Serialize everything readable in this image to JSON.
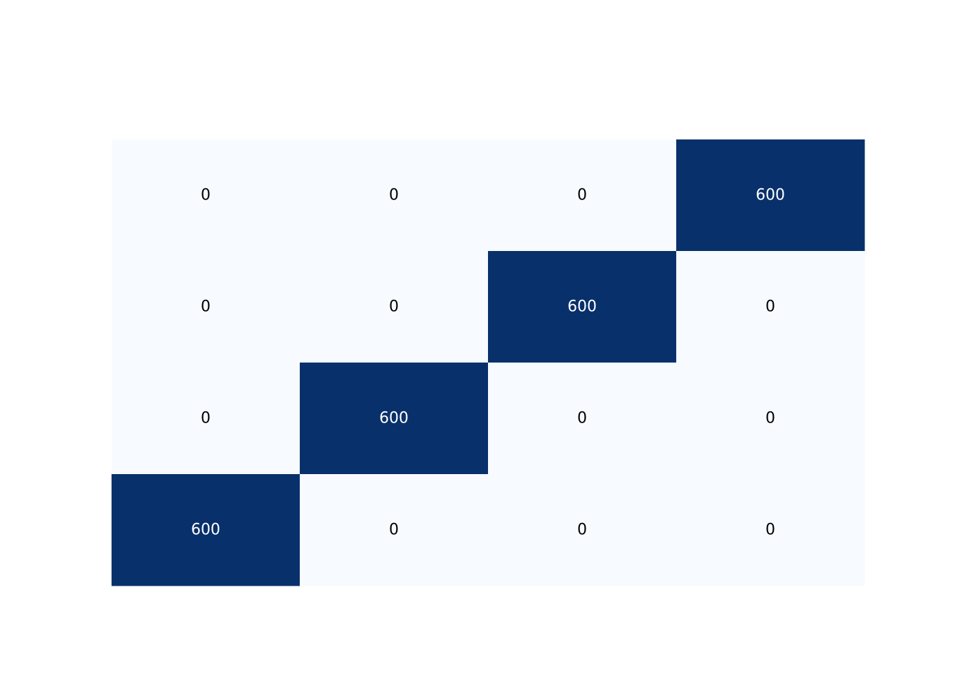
{
  "chart_data": {
    "type": "heatmap",
    "rows": 4,
    "cols": 4,
    "values": [
      [
        0,
        0,
        0,
        600
      ],
      [
        0,
        0,
        600,
        0
      ],
      [
        0,
        600,
        0,
        0
      ],
      [
        600,
        0,
        0,
        0
      ]
    ],
    "value_range": [
      0,
      600
    ],
    "colormap": {
      "low": "#f7fbff",
      "high": "#08306b"
    },
    "text_colors": {
      "on_light": "#000000",
      "on_dark": "#ffffff"
    },
    "title": "",
    "xlabel": "",
    "ylabel": "",
    "grid": false,
    "colorbar": false
  }
}
